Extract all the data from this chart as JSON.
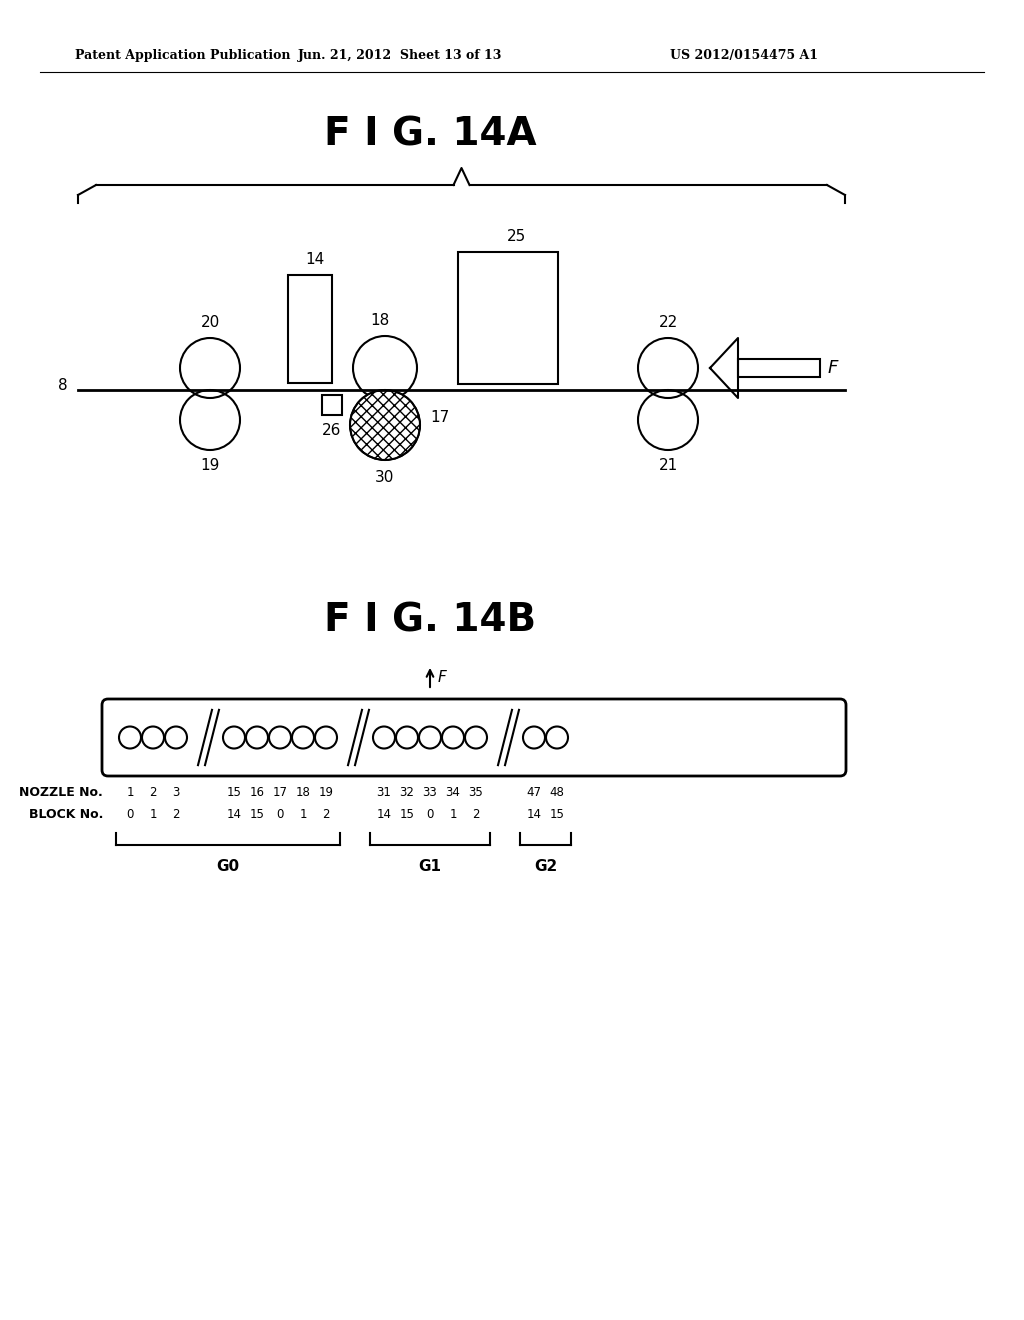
{
  "bg_color": "#ffffff",
  "header_text": "Patent Application Publication",
  "header_date": "Jun. 21, 2012  Sheet 13 of 13",
  "header_patent": "US 2012/0154475 A1",
  "fig14a_title": "F I G. 14A",
  "fig14b_title": "F I G. 14B",
  "label_8": "8",
  "label_14": "14",
  "label_17": "17",
  "label_18": "18",
  "label_19": "19",
  "label_20": "20",
  "label_21": "21",
  "label_22": "22",
  "label_25": "25",
  "label_26": "26",
  "label_30": "30",
  "label_F": "F",
  "nozzle_label": "NOZZLE No.",
  "block_label": "BLOCK No.",
  "nozzle_numbers": [
    "1",
    "2",
    "3",
    "15",
    "16",
    "17",
    "18",
    "19",
    "31",
    "32",
    "33",
    "34",
    "35",
    "47",
    "48"
  ],
  "block_numbers": [
    "0",
    "1",
    "2",
    "14",
    "15",
    "0",
    "1",
    "2",
    "14",
    "15",
    "0",
    "1",
    "2",
    "14",
    "15"
  ],
  "group_labels": [
    "G0",
    "G1",
    "G2"
  ]
}
